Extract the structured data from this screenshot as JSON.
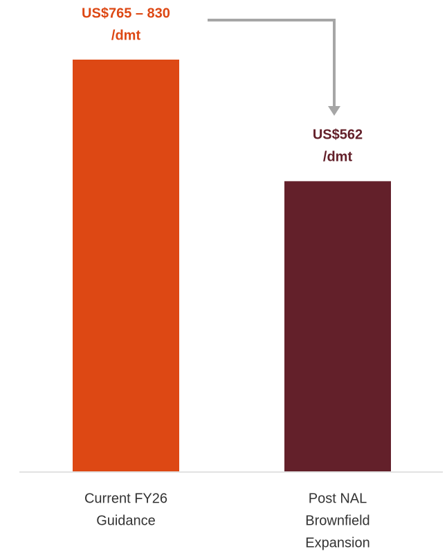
{
  "chart_data": {
    "type": "bar",
    "categories": [
      [
        "Current FY26",
        "Guidance"
      ],
      [
        "Post NAL",
        "Brownfield",
        "Expansion"
      ]
    ],
    "values": [
      797.5,
      562
    ],
    "value_labels": [
      [
        "US$765 – 830",
        "/dmt"
      ],
      [
        "US$562",
        "/dmt"
      ]
    ],
    "colors": [
      "#dd4814",
      "#63202a"
    ]
  }
}
